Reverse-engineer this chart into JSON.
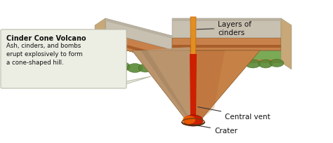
{
  "title": "Cinder Cone Volcano",
  "description": "Ash, cinders, and bombs\nerupt explosively to form\na cone-shaped hill.",
  "labels": {
    "crater": "Crater",
    "central_vent": "Central vent",
    "layers": "Layers of\ncinders"
  },
  "colors": {
    "white": "#ffffff",
    "background": "#f0eeeb",
    "ground_green": "#7aaa55",
    "ground_green_dark": "#5a8835",
    "ground_brown": "#c8814a",
    "ground_brown_dark": "#a85e2a",
    "ground_side_tan": "#c8a878",
    "ground_side_tan2": "#b89060",
    "ground_base_gray": "#c8c0b0",
    "ground_base_gray2": "#b8b0a0",
    "cone_main": "#c07840",
    "cone_light": "#d09050",
    "cone_dark": "#906030",
    "cone_ash": "#b8a080",
    "cone_ash2": "#a08060",
    "lava_red": "#cc2000",
    "lava_orange": "#ee6600",
    "vent_yellow": "#e09020",
    "vent_orange": "#cc6010",
    "callout_bg": "#eceee4",
    "callout_border": "#bbbbaa",
    "text_color": "#111111",
    "arrow_color": "#333333"
  },
  "figsize": [
    4.74,
    2.05
  ],
  "dpi": 100
}
